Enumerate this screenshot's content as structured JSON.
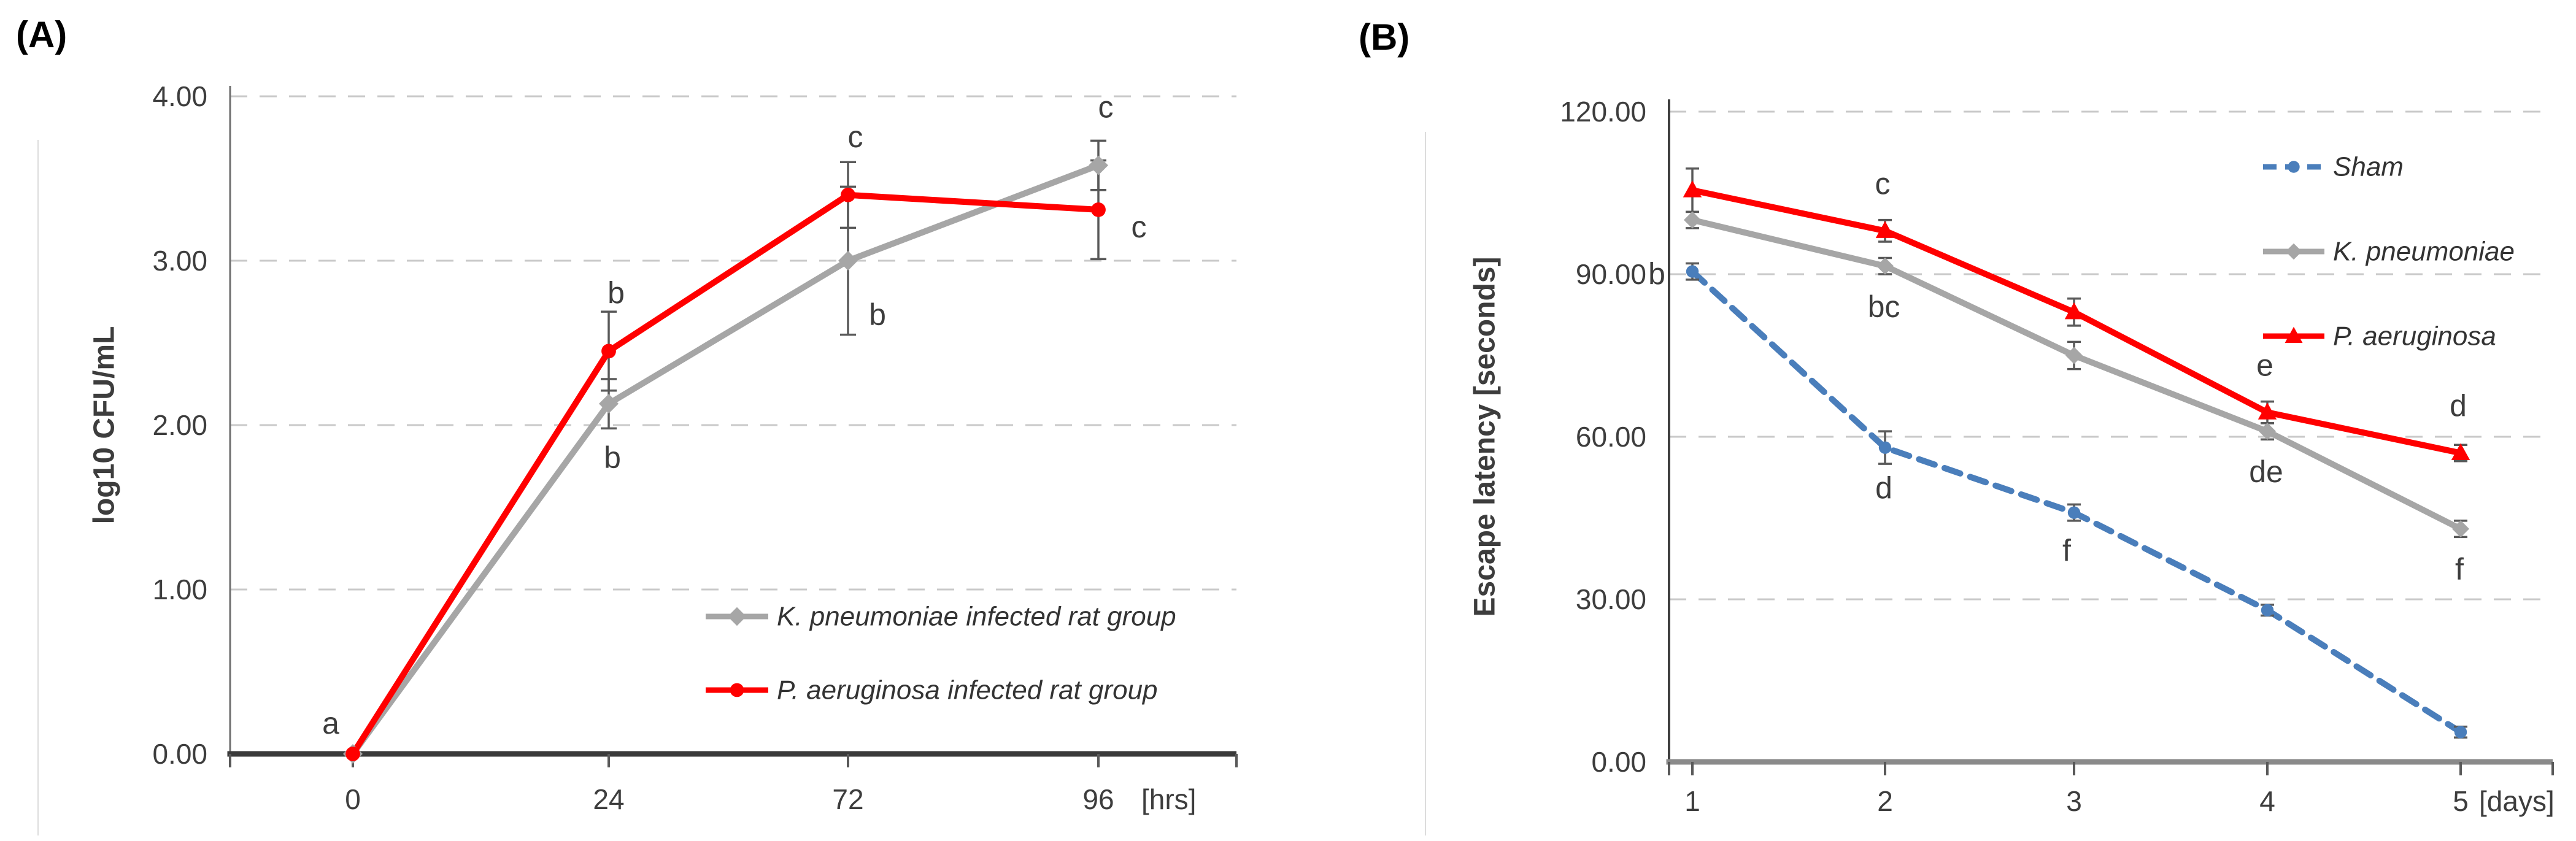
{
  "figure": {
    "background": "#ffffff",
    "text_color": "#3d3d3d",
    "gridline_color": "#c9c9c9",
    "error_bar_color": "#595959"
  },
  "chart_data": [
    {
      "type": "line",
      "panel_label": "(A)",
      "ylabel": "log10 CFU/mL",
      "x_unit_label": "[hrs]",
      "categories": [
        "0",
        "24",
        "72",
        "96"
      ],
      "ylim": [
        0,
        4
      ],
      "ytick_labels": [
        "0.00",
        "1.00",
        "2.00",
        "3.00",
        "4.00"
      ],
      "grid": "horizontal-dashed",
      "legend_position": "inside-bottom-right",
      "series": [
        {
          "name": "K. pneumoniae infected rat group",
          "color": "#a6a6a6",
          "marker": "diamond",
          "line_style": "solid",
          "values": [
            0.0,
            2.13,
            3.0,
            3.58
          ],
          "errors": [
            0,
            0.15,
            0.45,
            0.15
          ]
        },
        {
          "name": "P. aeruginosa infected rat group",
          "color": "#ff0000",
          "marker": "circle",
          "line_style": "solid",
          "values": [
            0.0,
            2.45,
            3.4,
            3.31
          ],
          "errors": [
            0,
            0.24,
            0.2,
            0.3
          ]
        }
      ],
      "annotations": [
        {
          "text": "a",
          "series": 1,
          "index": 0,
          "position": "above-left"
        },
        {
          "text": "b",
          "series": 1,
          "index": 1,
          "position": "above"
        },
        {
          "text": "b",
          "series": 0,
          "index": 1,
          "position": "below"
        },
        {
          "text": "c",
          "series": 1,
          "index": 2,
          "position": "above"
        },
        {
          "text": "b",
          "series": 0,
          "index": 2,
          "position": "below-right"
        },
        {
          "text": "c",
          "series": 0,
          "index": 3,
          "position": "above"
        },
        {
          "text": "c",
          "series": 1,
          "index": 3,
          "position": "right"
        }
      ]
    },
    {
      "type": "line",
      "panel_label": "(B)",
      "ylabel": "Escape latency [seconds]",
      "x_unit_label": "[days]",
      "categories": [
        "1",
        "2",
        "3",
        "4",
        "5"
      ],
      "ylim": [
        0,
        120
      ],
      "ytick_labels": [
        "0.00",
        "30.00",
        "60.00",
        "90.00",
        "120.00"
      ],
      "grid": "horizontal-dashed",
      "legend_position": "top-right",
      "series": [
        {
          "name": "Sham",
          "color": "#4a7ebb",
          "marker": "circle",
          "line_style": "dashed",
          "values": [
            90.5,
            58,
            46,
            28,
            5.5
          ],
          "errors": [
            1.5,
            3,
            1.5,
            1,
            1
          ]
        },
        {
          "name": "K. pneumoniae",
          "color": "#a6a6a6",
          "marker": "diamond",
          "line_style": "solid",
          "values": [
            100,
            91.5,
            75,
            61,
            43
          ],
          "errors": [
            1.5,
            1.5,
            2.5,
            1.5,
            1.5
          ]
        },
        {
          "name": "P. aeruginosa",
          "color": "#ff0000",
          "marker": "triangle",
          "line_style": "solid",
          "values": [
            105.5,
            98,
            83,
            64.5,
            57
          ],
          "errors": [
            4,
            2,
            2.5,
            2,
            1.5
          ]
        }
      ],
      "annotations": [
        {
          "text": "b",
          "series": 0,
          "index": 0,
          "position": "left"
        },
        {
          "text": "c",
          "series": 2,
          "index": 1,
          "position": "above"
        },
        {
          "text": "bc",
          "series": 1,
          "index": 1,
          "position": "below"
        },
        {
          "text": "d",
          "series": 0,
          "index": 1,
          "position": "below"
        },
        {
          "text": "f",
          "series": 0,
          "index": 2,
          "position": "below-left"
        },
        {
          "text": "e",
          "series": 2,
          "index": 3,
          "position": "above"
        },
        {
          "text": "de",
          "series": 1,
          "index": 3,
          "position": "below"
        },
        {
          "text": "d",
          "series": 2,
          "index": 4,
          "position": "above"
        },
        {
          "text": "f",
          "series": 1,
          "index": 4,
          "position": "below"
        }
      ]
    }
  ]
}
